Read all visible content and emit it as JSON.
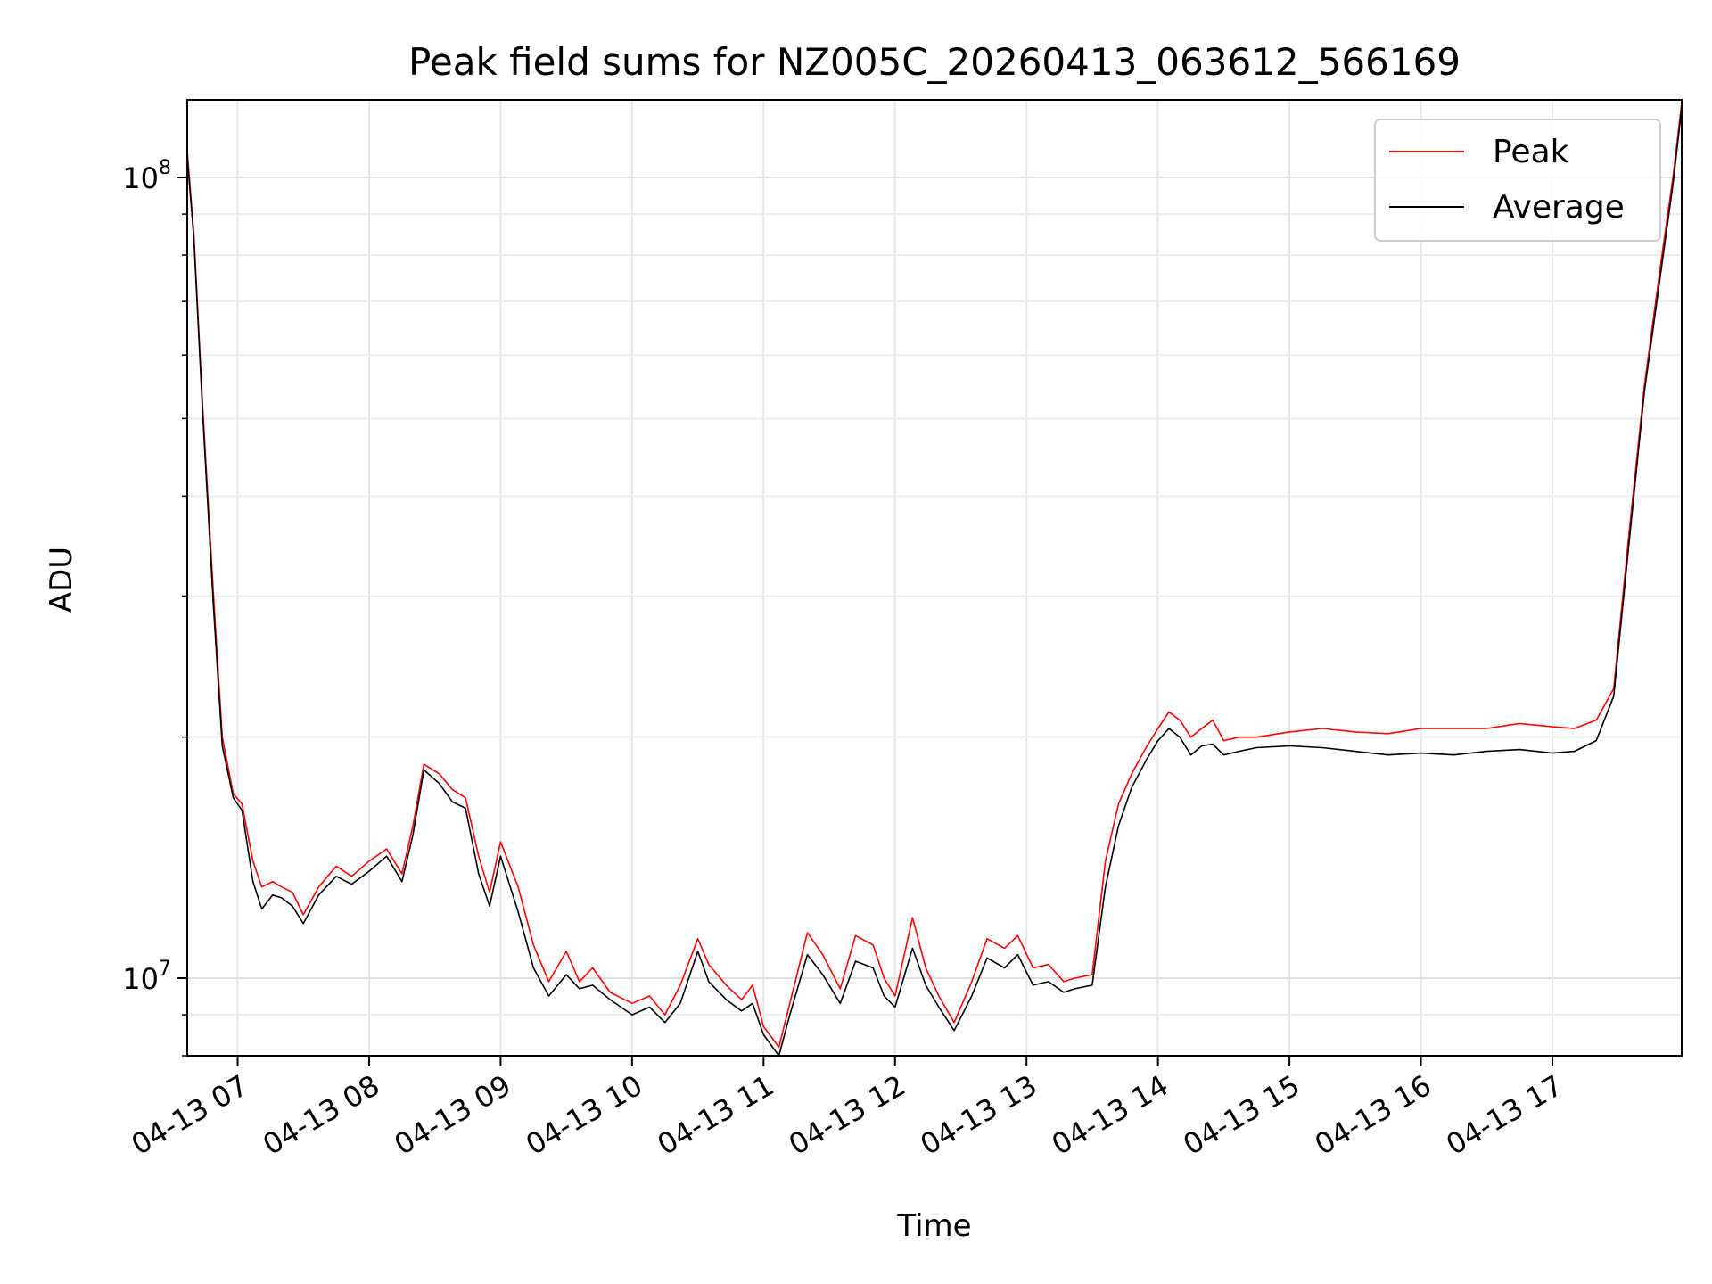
{
  "chart_data": {
    "type": "line",
    "title": "Peak field sums for NZ005C_20260413_063612_566169",
    "xlabel": "Time",
    "ylabel": "ADU",
    "yscale": "log",
    "ylim": [
      8000000,
      125000000
    ],
    "xlim": [
      "2026-04-13 06:37",
      "2026-04-13 17:59"
    ],
    "xticks": [
      {
        "x": "2026-04-13 07:00",
        "label": "04-13 07"
      },
      {
        "x": "2026-04-13 08:00",
        "label": "04-13 08"
      },
      {
        "x": "2026-04-13 09:00",
        "label": "04-13 09"
      },
      {
        "x": "2026-04-13 10:00",
        "label": "04-13 10"
      },
      {
        "x": "2026-04-13 11:00",
        "label": "04-13 11"
      },
      {
        "x": "2026-04-13 12:00",
        "label": "04-13 12"
      },
      {
        "x": "2026-04-13 13:00",
        "label": "04-13 13"
      },
      {
        "x": "2026-04-13 14:00",
        "label": "04-13 14"
      },
      {
        "x": "2026-04-13 15:00",
        "label": "04-13 15"
      },
      {
        "x": "2026-04-13 16:00",
        "label": "04-13 16"
      },
      {
        "x": "2026-04-13 17:00",
        "label": "04-13 17"
      }
    ],
    "yticks": [
      {
        "value": 10000000,
        "base": "10",
        "exp": "7"
      },
      {
        "value": 100000000,
        "base": "10",
        "exp": "8"
      }
    ],
    "grid": true,
    "legend": "upper right",
    "series": [
      {
        "name": "Peak",
        "color": "#ff0000",
        "x": [
          "2026-04-13 06:37",
          "2026-04-13 06:40",
          "2026-04-13 06:44",
          "2026-04-13 06:49",
          "2026-04-13 06:53",
          "2026-04-13 06:58",
          "2026-04-13 07:02",
          "2026-04-13 07:07",
          "2026-04-13 07:11",
          "2026-04-13 07:16",
          "2026-04-13 07:20",
          "2026-04-13 07:25",
          "2026-04-13 07:30",
          "2026-04-13 07:37",
          "2026-04-13 07:45",
          "2026-04-13 07:52",
          "2026-04-13 08:00",
          "2026-04-13 08:08",
          "2026-04-13 08:15",
          "2026-04-13 08:20",
          "2026-04-13 08:25",
          "2026-04-13 08:32",
          "2026-04-13 08:38",
          "2026-04-13 08:44",
          "2026-04-13 08:50",
          "2026-04-13 08:55",
          "2026-04-13 09:00",
          "2026-04-13 09:08",
          "2026-04-13 09:15",
          "2026-04-13 09:22",
          "2026-04-13 09:30",
          "2026-04-13 09:36",
          "2026-04-13 09:42",
          "2026-04-13 09:50",
          "2026-04-13 10:00",
          "2026-04-13 10:08",
          "2026-04-13 10:15",
          "2026-04-13 10:22",
          "2026-04-13 10:30",
          "2026-04-13 10:35",
          "2026-04-13 10:43",
          "2026-04-13 10:50",
          "2026-04-13 10:55",
          "2026-04-13 11:00",
          "2026-04-13 11:07",
          "2026-04-13 11:12",
          "2026-04-13 11:20",
          "2026-04-13 11:27",
          "2026-04-13 11:35",
          "2026-04-13 11:42",
          "2026-04-13 11:50",
          "2026-04-13 11:55",
          "2026-04-13 12:00",
          "2026-04-13 12:08",
          "2026-04-13 12:14",
          "2026-04-13 12:20",
          "2026-04-13 12:27",
          "2026-04-13 12:35",
          "2026-04-13 12:42",
          "2026-04-13 12:50",
          "2026-04-13 12:56",
          "2026-04-13 13:03",
          "2026-04-13 13:10",
          "2026-04-13 13:17",
          "2026-04-13 13:22",
          "2026-04-13 13:30",
          "2026-04-13 13:36",
          "2026-04-13 13:42",
          "2026-04-13 13:48",
          "2026-04-13 13:55",
          "2026-04-13 14:00",
          "2026-04-13 14:05",
          "2026-04-13 14:10",
          "2026-04-13 14:15",
          "2026-04-13 14:20",
          "2026-04-13 14:25",
          "2026-04-13 14:30",
          "2026-04-13 14:37",
          "2026-04-13 14:45",
          "2026-04-13 15:00",
          "2026-04-13 15:15",
          "2026-04-13 15:30",
          "2026-04-13 15:45",
          "2026-04-13 16:00",
          "2026-04-13 16:15",
          "2026-04-13 16:30",
          "2026-04-13 16:45",
          "2026-04-13 17:00",
          "2026-04-13 17:10",
          "2026-04-13 17:20",
          "2026-04-13 17:28",
          "2026-04-13 17:35",
          "2026-04-13 17:42",
          "2026-04-13 17:50",
          "2026-04-13 17:55",
          "2026-04-13 17:59"
        ],
        "values": [
          108000000,
          85000000,
          52000000,
          30000000,
          20000000,
          17000000,
          16500000,
          14000000,
          13000000,
          13200000,
          13000000,
          12800000,
          12000000,
          13000000,
          13800000,
          13400000,
          14000000,
          14500000,
          13500000,
          15500000,
          18500000,
          18000000,
          17200000,
          16800000,
          14200000,
          12800000,
          14800000,
          13000000,
          11000000,
          9900000,
          10800000,
          9900000,
          10300000,
          9600000,
          9300000,
          9500000,
          9000000,
          9800000,
          11200000,
          10400000,
          9800000,
          9400000,
          9800000,
          8700000,
          8200000,
          9300000,
          11400000,
          10700000,
          9700000,
          11300000,
          11000000,
          10000000,
          9500000,
          11900000,
          10300000,
          9500000,
          8800000,
          9900000,
          11200000,
          10900000,
          11300000,
          10300000,
          10400000,
          9900000,
          10000000,
          10100000,
          14000000,
          16500000,
          18000000,
          19500000,
          20500000,
          21500000,
          21000000,
          20000000,
          20500000,
          21000000,
          19800000,
          20000000,
          20000000,
          20300000,
          20500000,
          20300000,
          20200000,
          20500000,
          20500000,
          20500000,
          20800000,
          20600000,
          20500000,
          21000000,
          23000000,
          36000000,
          55000000,
          80000000,
          100000000,
          124000000
        ]
      },
      {
        "name": "Average",
        "color": "#000000",
        "x": [
          "2026-04-13 06:37",
          "2026-04-13 06:40",
          "2026-04-13 06:44",
          "2026-04-13 06:49",
          "2026-04-13 06:53",
          "2026-04-13 06:58",
          "2026-04-13 07:02",
          "2026-04-13 07:07",
          "2026-04-13 07:11",
          "2026-04-13 07:16",
          "2026-04-13 07:20",
          "2026-04-13 07:25",
          "2026-04-13 07:30",
          "2026-04-13 07:37",
          "2026-04-13 07:45",
          "2026-04-13 07:52",
          "2026-04-13 08:00",
          "2026-04-13 08:08",
          "2026-04-13 08:15",
          "2026-04-13 08:20",
          "2026-04-13 08:25",
          "2026-04-13 08:32",
          "2026-04-13 08:38",
          "2026-04-13 08:44",
          "2026-04-13 08:50",
          "2026-04-13 08:55",
          "2026-04-13 09:00",
          "2026-04-13 09:08",
          "2026-04-13 09:15",
          "2026-04-13 09:22",
          "2026-04-13 09:30",
          "2026-04-13 09:36",
          "2026-04-13 09:42",
          "2026-04-13 09:50",
          "2026-04-13 10:00",
          "2026-04-13 10:08",
          "2026-04-13 10:15",
          "2026-04-13 10:22",
          "2026-04-13 10:30",
          "2026-04-13 10:35",
          "2026-04-13 10:43",
          "2026-04-13 10:50",
          "2026-04-13 10:55",
          "2026-04-13 11:00",
          "2026-04-13 11:07",
          "2026-04-13 11:12",
          "2026-04-13 11:20",
          "2026-04-13 11:27",
          "2026-04-13 11:35",
          "2026-04-13 11:42",
          "2026-04-13 11:50",
          "2026-04-13 11:55",
          "2026-04-13 12:00",
          "2026-04-13 12:08",
          "2026-04-13 12:14",
          "2026-04-13 12:20",
          "2026-04-13 12:27",
          "2026-04-13 12:35",
          "2026-04-13 12:42",
          "2026-04-13 12:50",
          "2026-04-13 12:56",
          "2026-04-13 13:03",
          "2026-04-13 13:10",
          "2026-04-13 13:17",
          "2026-04-13 13:22",
          "2026-04-13 13:30",
          "2026-04-13 13:36",
          "2026-04-13 13:42",
          "2026-04-13 13:48",
          "2026-04-13 13:55",
          "2026-04-13 14:00",
          "2026-04-13 14:05",
          "2026-04-13 14:10",
          "2026-04-13 14:15",
          "2026-04-13 14:20",
          "2026-04-13 14:25",
          "2026-04-13 14:30",
          "2026-04-13 14:37",
          "2026-04-13 14:45",
          "2026-04-13 15:00",
          "2026-04-13 15:15",
          "2026-04-13 15:30",
          "2026-04-13 15:45",
          "2026-04-13 16:00",
          "2026-04-13 16:15",
          "2026-04-13 16:30",
          "2026-04-13 16:45",
          "2026-04-13 17:00",
          "2026-04-13 17:10",
          "2026-04-13 17:20",
          "2026-04-13 17:28",
          "2026-04-13 17:35",
          "2026-04-13 17:42",
          "2026-04-13 17:50",
          "2026-04-13 17:55",
          "2026-04-13 17:59"
        ],
        "values": [
          106000000,
          84000000,
          51000000,
          29000000,
          19500000,
          16800000,
          16200000,
          13200000,
          12200000,
          12700000,
          12600000,
          12300000,
          11700000,
          12700000,
          13400000,
          13100000,
          13600000,
          14200000,
          13200000,
          15100000,
          18200000,
          17500000,
          16600000,
          16300000,
          13500000,
          12300000,
          14200000,
          12100000,
          10300000,
          9500000,
          10100000,
          9700000,
          9800000,
          9400000,
          9000000,
          9200000,
          8800000,
          9300000,
          10800000,
          9900000,
          9400000,
          9100000,
          9300000,
          8500000,
          8000000,
          9000000,
          10700000,
          10100000,
          9300000,
          10500000,
          10300000,
          9500000,
          9200000,
          10900000,
          9800000,
          9200000,
          8600000,
          9500000,
          10600000,
          10300000,
          10700000,
          9800000,
          9900000,
          9600000,
          9700000,
          9800000,
          13000000,
          15500000,
          17300000,
          18800000,
          19800000,
          20500000,
          20000000,
          19000000,
          19500000,
          19600000,
          19000000,
          19200000,
          19400000,
          19500000,
          19400000,
          19200000,
          19000000,
          19100000,
          19000000,
          19200000,
          19300000,
          19100000,
          19200000,
          19800000,
          22500000,
          35000000,
          54000000,
          78000000,
          98000000,
          122000000
        ]
      }
    ]
  }
}
